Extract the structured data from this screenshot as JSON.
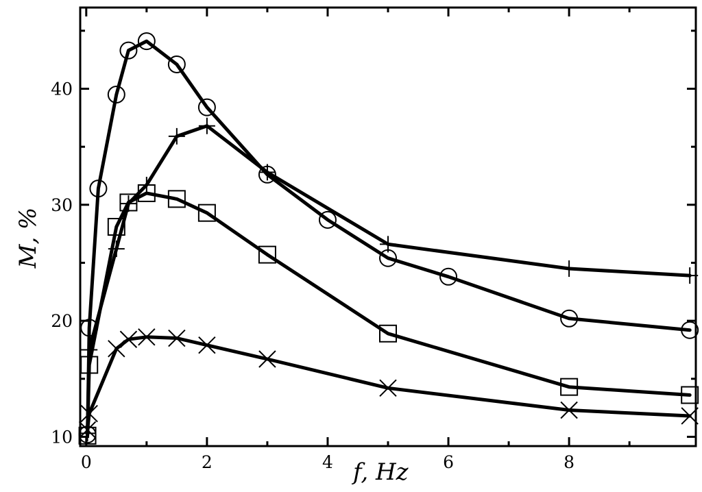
{
  "chart_data": {
    "type": "line",
    "xlabel": "f, Hz",
    "ylabel": "M, %",
    "xlim": [
      -0.1,
      10.1
    ],
    "ylim": [
      9.2,
      47
    ],
    "xticks": [
      0,
      2,
      4,
      6,
      8
    ],
    "yticks": [
      10,
      20,
      30,
      40
    ],
    "xtick_labels": [
      "0",
      "2",
      "4",
      "6",
      "8"
    ],
    "ytick_labels": [
      "10",
      "20",
      "30",
      "40"
    ],
    "minor_xticks": [
      1,
      3,
      5,
      7,
      9
    ],
    "minor_yticks": [
      15,
      25,
      35,
      45
    ],
    "grid": false,
    "series": [
      {
        "marker": "circle",
        "x": [
          0.02,
          0.05,
          0.2,
          0.5,
          0.7,
          1,
          1.5,
          2,
          3,
          4,
          5,
          6,
          8,
          10
        ],
        "y": [
          10.2,
          19.4,
          31.4,
          39.5,
          43.3,
          44.1,
          42.1,
          38.4,
          32.6,
          28.7,
          25.4,
          23.8,
          20.2,
          19.2
        ]
      },
      {
        "marker": "plus",
        "x": [
          0.02,
          0.05,
          0.5,
          0.7,
          1,
          1.5,
          2,
          3,
          5,
          8,
          10
        ],
        "y": [
          10.3,
          17.5,
          26.2,
          30.1,
          31.7,
          35.9,
          36.8,
          32.8,
          26.6,
          24.5,
          23.9
        ]
      },
      {
        "marker": "square",
        "x": [
          0.02,
          0.05,
          0.5,
          0.7,
          1,
          1.5,
          2,
          3,
          5,
          8,
          10
        ],
        "y": [
          10.1,
          16.2,
          28.1,
          30.2,
          31.0,
          30.5,
          29.3,
          25.7,
          18.9,
          14.3,
          13.6
        ]
      },
      {
        "marker": "x",
        "x": [
          0.02,
          0.05,
          0.5,
          0.7,
          1,
          1.5,
          2,
          3,
          5,
          8,
          10
        ],
        "y": [
          10.6,
          12.0,
          17.6,
          18.4,
          18.6,
          18.5,
          17.9,
          16.7,
          14.2,
          12.3,
          11.8
        ]
      }
    ]
  }
}
